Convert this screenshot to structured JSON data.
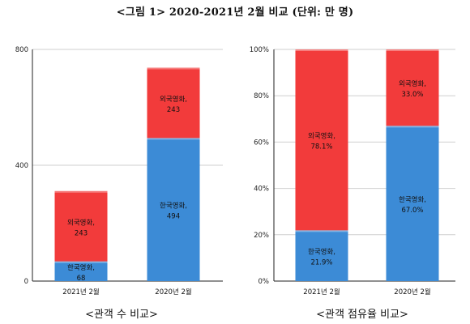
{
  "title": "<그림 1> 2020-2021년 2월 비교 (단위: 만 명)",
  "colors": {
    "domestic": "#3c8bd6",
    "foreign": "#f23b3b",
    "grid": "#cfcfcf",
    "axis": "#222222"
  },
  "chart_data": [
    {
      "type": "bar",
      "stacked": true,
      "caption": "<관객 수 비교>",
      "categories": [
        "2021년 2월",
        "2020년 2월"
      ],
      "ylim": [
        0,
        800
      ],
      "yticks": [
        "0",
        "400",
        "800"
      ],
      "grid": true,
      "series": [
        {
          "key": "domestic",
          "values": [
            68,
            494
          ],
          "labels": [
            "한국영화,\n68",
            "한국영화,\n494"
          ]
        },
        {
          "key": "foreign",
          "values": [
            243,
            243
          ],
          "labels": [
            "외국영화,\n243",
            "외국영화,\n243"
          ]
        }
      ]
    },
    {
      "type": "bar",
      "stacked": true,
      "caption": "<관객 점유율 비교>",
      "categories": [
        "2021년 2월",
        "2020년 2월"
      ],
      "ylim": [
        0,
        100
      ],
      "yticks": [
        "0%",
        "20%",
        "40%",
        "60%",
        "80%",
        "100%"
      ],
      "grid": true,
      "series": [
        {
          "key": "domestic",
          "values": [
            21.9,
            67.0
          ],
          "labels": [
            "한국영화,\n21.9%",
            "한국영화,\n67.0%"
          ]
        },
        {
          "key": "foreign",
          "values": [
            78.1,
            33.0
          ],
          "labels": [
            "외국영화,\n78.1%",
            "외국영화,\n33.0%"
          ]
        }
      ]
    }
  ]
}
